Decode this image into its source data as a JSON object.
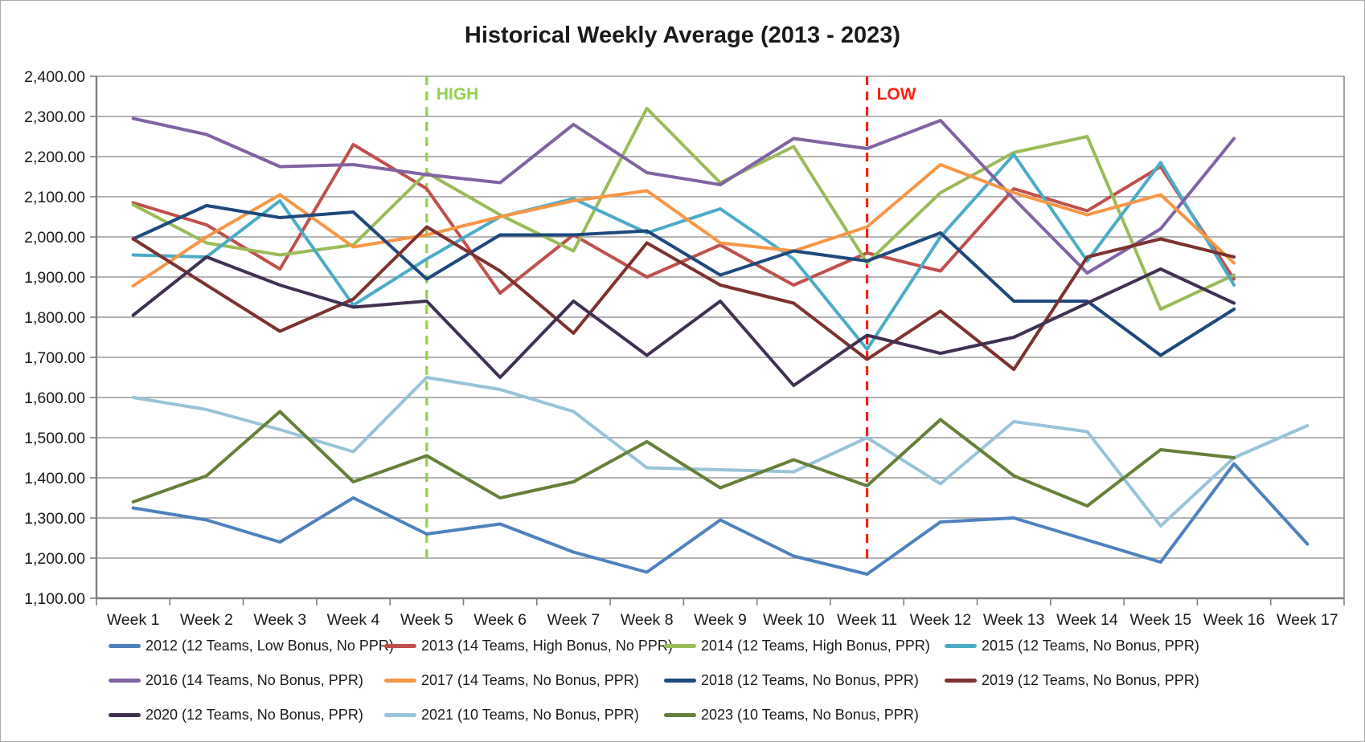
{
  "chart_data": {
    "type": "line",
    "title": "Historical Weekly Average (2013 - 2023)",
    "categories": [
      "Week 1",
      "Week 2",
      "Week 3",
      "Week 4",
      "Week 5",
      "Week 6",
      "Week 7",
      "Week 8",
      "Week 9",
      "Week 10",
      "Week 11",
      "Week 12",
      "Week 13",
      "Week 14",
      "Week 15",
      "Week 16",
      "Week 17"
    ],
    "ylim": [
      1100,
      2400
    ],
    "ytick_step": 100,
    "ytick_labels": [
      "2,400.00",
      "2,300.00",
      "2,200.00",
      "2,100.00",
      "2,000.00",
      "1,900.00",
      "1,800.00",
      "1,700.00",
      "1,600.00",
      "1,500.00",
      "1,400.00",
      "1,300.00",
      "1,200.00",
      "1,100.00"
    ],
    "grid": true,
    "legend_position": "bottom",
    "annotations": [
      {
        "label": "HIGH",
        "category": "Week 5",
        "color": "#92D050",
        "style": "dashed"
      },
      {
        "label": "LOW",
        "category": "Week 11",
        "color": "#FB2011",
        "style": "dashed"
      }
    ],
    "series": [
      {
        "name": "2012 (12 Teams, Low Bonus, No PPR)",
        "color": "#4F81BD",
        "values": [
          1325,
          1295,
          1240,
          1350,
          1260,
          1285,
          1215,
          1165,
          1295,
          1205,
          1160,
          1290,
          1300,
          1245,
          1190,
          1435,
          1235
        ]
      },
      {
        "name": "2013 (14 Teams, High Bonus, No PPR)",
        "color": "#C0504D",
        "values": [
          2085,
          2030,
          1920,
          2230,
          2120,
          1860,
          2005,
          1900,
          1980,
          1880,
          1960,
          1915,
          2120,
          2065,
          2175,
          1895
        ]
      },
      {
        "name": "2014 (12 Teams, High Bonus, PPR)",
        "color": "#9BBB59",
        "values": [
          2080,
          1985,
          1955,
          1980,
          2160,
          2055,
          1965,
          2320,
          2135,
          2225,
          1935,
          2110,
          2210,
          2250,
          1820,
          1905
        ]
      },
      {
        "name": "2015 (12 Teams, No Bonus, PPR)",
        "color": "#4BACC6",
        "values": [
          1955,
          1950,
          2090,
          1830,
          1945,
          2050,
          2095,
          2010,
          2070,
          1945,
          1720,
          2000,
          2205,
          1940,
          2185,
          1880
        ]
      },
      {
        "name": "2016 (14 Teams, No Bonus, PPR)",
        "color": "#8064A2",
        "values": [
          2295,
          2255,
          2175,
          2180,
          2155,
          2135,
          2280,
          2160,
          2130,
          2245,
          2220,
          2290,
          2095,
          1910,
          2020,
          2245
        ]
      },
      {
        "name": "2017 (14 Teams, No Bonus, PPR)",
        "color": "#F79646",
        "values": [
          1878,
          2000,
          2105,
          1975,
          2005,
          2050,
          2090,
          2115,
          1985,
          1965,
          2025,
          2180,
          2110,
          2055,
          2105,
          1935
        ]
      },
      {
        "name": "2018 (12 Teams, No Bonus, PPR)",
        "color": "#1F497D",
        "values": [
          1995,
          2078,
          2048,
          2062,
          1895,
          2005,
          2005,
          2015,
          1905,
          1965,
          1940,
          2010,
          1840,
          1840,
          1705,
          1820
        ]
      },
      {
        "name": "2019 (12 Teams, No Bonus, PPR)",
        "color": "#7D3230",
        "values": [
          1995,
          1880,
          1765,
          1845,
          2025,
          1915,
          1760,
          1985,
          1880,
          1835,
          1695,
          1815,
          1670,
          1950,
          1995,
          1950
        ]
      },
      {
        "name": "2020 (12 Teams, No Bonus, PPR)",
        "color": "#403152",
        "values": [
          1805,
          1950,
          1880,
          1825,
          1840,
          1650,
          1840,
          1705,
          1840,
          1630,
          1755,
          1710,
          1750,
          1835,
          1920,
          1835
        ]
      },
      {
        "name": "2021 (10 Teams, No Bonus, PPR)",
        "color": "#99C4D8",
        "values": [
          1600,
          1570,
          1520,
          1465,
          1650,
          1620,
          1565,
          1425,
          1420,
          1415,
          1500,
          1385,
          1540,
          1515,
          1280,
          1450,
          1530
        ]
      },
      {
        "name": "2023 (10 Teams, No Bonus, PPR)",
        "color": "#66803A",
        "values": [
          1340,
          1405,
          1565,
          1390,
          1455,
          1350,
          1390,
          1490,
          1375,
          1445,
          1380,
          1545,
          1405,
          1330,
          1470,
          1450
        ]
      }
    ]
  }
}
